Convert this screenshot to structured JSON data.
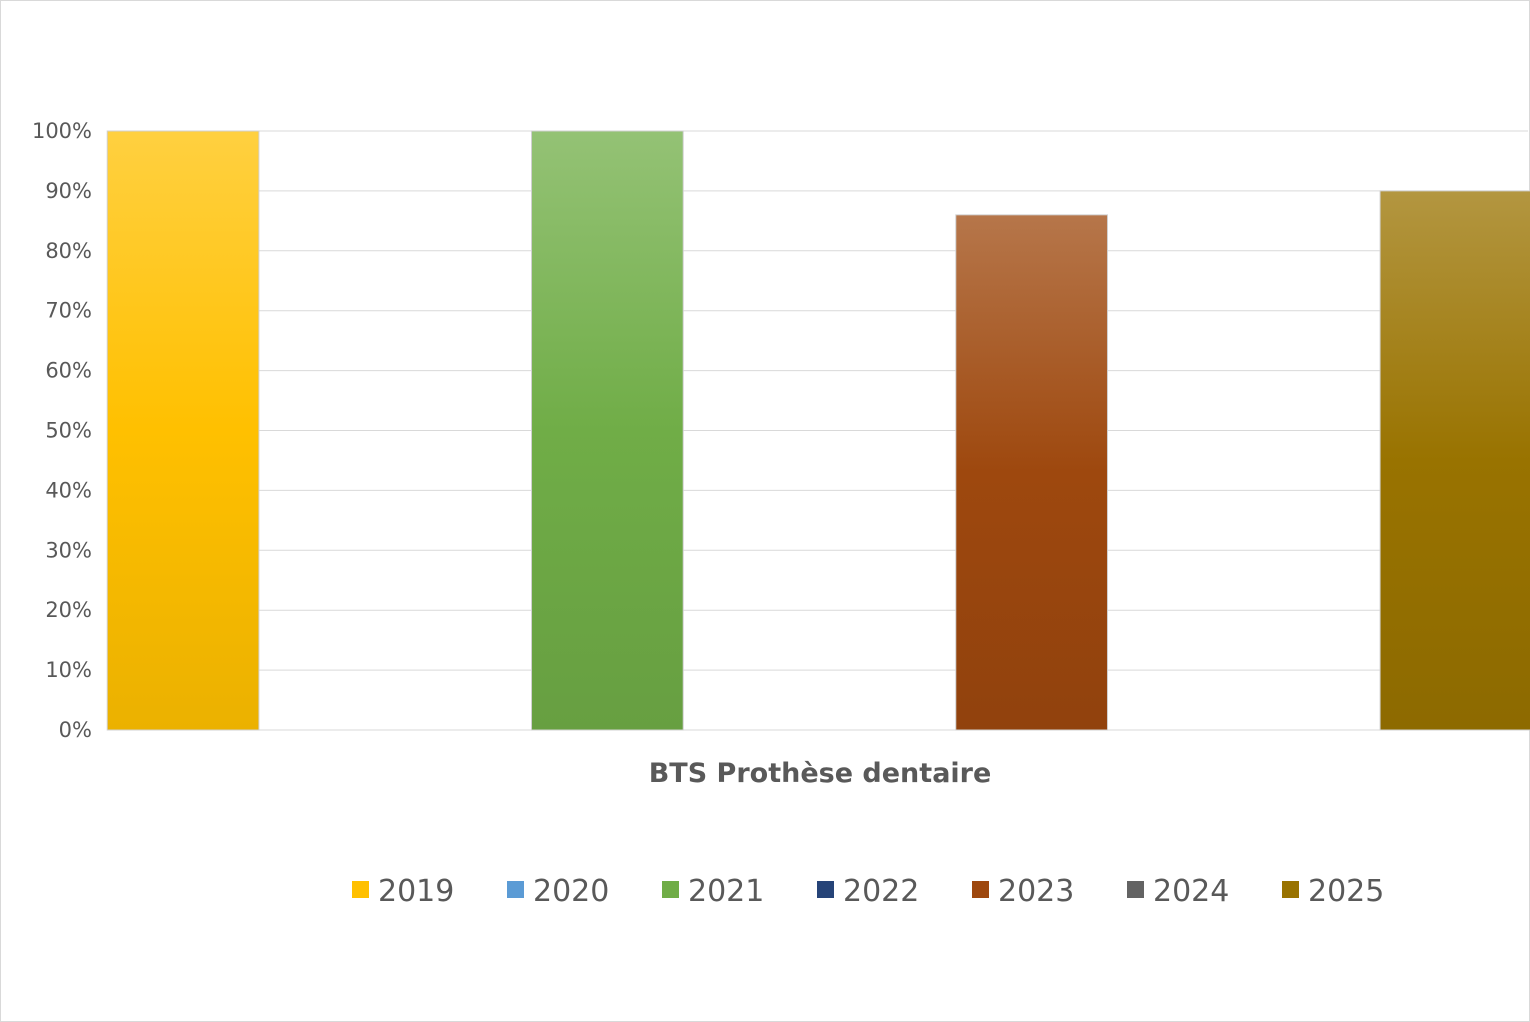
{
  "chart_data": {
    "type": "bar",
    "categories": [
      "BTS Prothèse dentaire"
    ],
    "ylim": [
      0,
      1
    ],
    "y_ticks": [
      "0%",
      "10%",
      "20%",
      "30%",
      "40%",
      "50%",
      "60%",
      "70%",
      "80%",
      "90%",
      "100%"
    ],
    "grid": true,
    "legend_position": "bottom",
    "series": [
      {
        "name": "2019",
        "values": [
          1.0
        ],
        "color": "#ffc000"
      },
      {
        "name": "2020",
        "values": [
          null
        ],
        "color": "#5b9bd5"
      },
      {
        "name": "2021",
        "values": [
          1.0
        ],
        "color": "#70ad47"
      },
      {
        "name": "2022",
        "values": [
          null
        ],
        "color": "#264478"
      },
      {
        "name": "2023",
        "values": [
          0.86
        ],
        "color": "#9e480e"
      },
      {
        "name": "2024",
        "values": [
          null
        ],
        "color": "#636363"
      },
      {
        "name": "2025",
        "values": [
          0.9
        ],
        "color": "#997300"
      }
    ]
  }
}
